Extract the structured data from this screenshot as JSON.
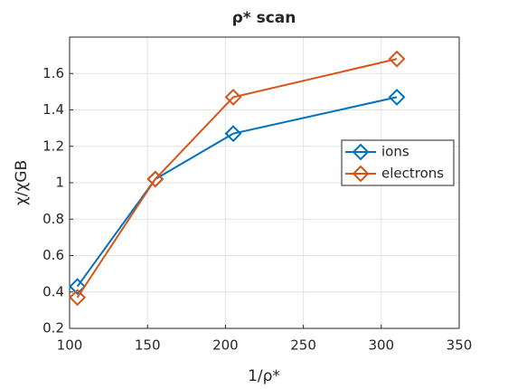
{
  "chart_data": {
    "type": "line",
    "title": "ρ* scan",
    "x_label": "1/ρ*",
    "y_label": "χ/χGB",
    "x": [
      105,
      155,
      205,
      310
    ],
    "series": [
      {
        "name": "ions",
        "color": "#0072bd",
        "values": [
          0.43,
          1.02,
          1.27,
          1.47
        ]
      },
      {
        "name": "electrons",
        "color": "#d95319",
        "values": [
          0.37,
          1.02,
          1.47,
          1.68
        ]
      }
    ],
    "xlim": [
      100,
      350
    ],
    "xticks": [
      100,
      150,
      200,
      250,
      300,
      350
    ],
    "ylim": [
      0.2,
      1.8
    ],
    "yticks": [
      0.2,
      0.4,
      0.6,
      0.8,
      1,
      1.2,
      1.4,
      1.6
    ],
    "grid": true,
    "legend": "right",
    "marker": "diamond"
  }
}
